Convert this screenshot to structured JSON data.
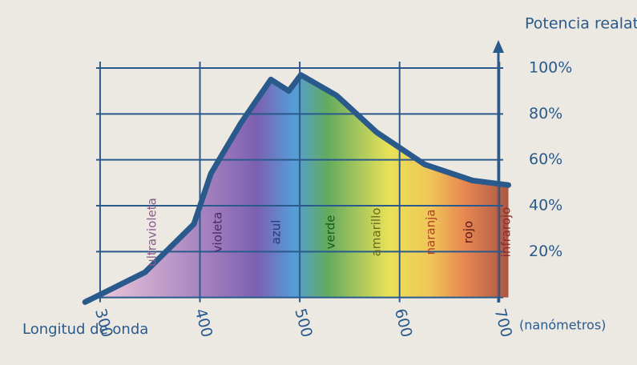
{
  "chart_data": {
    "type": "line",
    "title": "Potencia realativa",
    "x_label": "Longitud de onda",
    "x_unit": "(nanómetros)",
    "x": [
      285,
      345,
      394,
      411,
      441,
      471,
      489,
      501,
      537,
      577,
      625,
      673,
      709
    ],
    "series": [
      {
        "values": [
          -2,
          11,
          32,
          54,
          76,
          95,
          90,
          97,
          88,
          72,
          58,
          51,
          49
        ],
        "color": "#2a5a8c"
      }
    ],
    "xlim": [
      280,
      715
    ],
    "xticks": [
      300,
      400,
      500,
      600,
      700
    ],
    "ylim": [
      -5,
      100
    ],
    "yticks": [
      {
        "value": 20,
        "label": "20%"
      },
      {
        "value": 40,
        "label": "40%"
      },
      {
        "value": 60,
        "label": "60%"
      },
      {
        "value": 80,
        "label": "80%"
      },
      {
        "value": 100,
        "label": "100%"
      }
    ],
    "grid": true,
    "bands": [
      "ultravioleta",
      "violeta",
      "azul",
      "verde",
      "amarillo",
      "naranja",
      "rojo",
      "infrarojo"
    ]
  }
}
